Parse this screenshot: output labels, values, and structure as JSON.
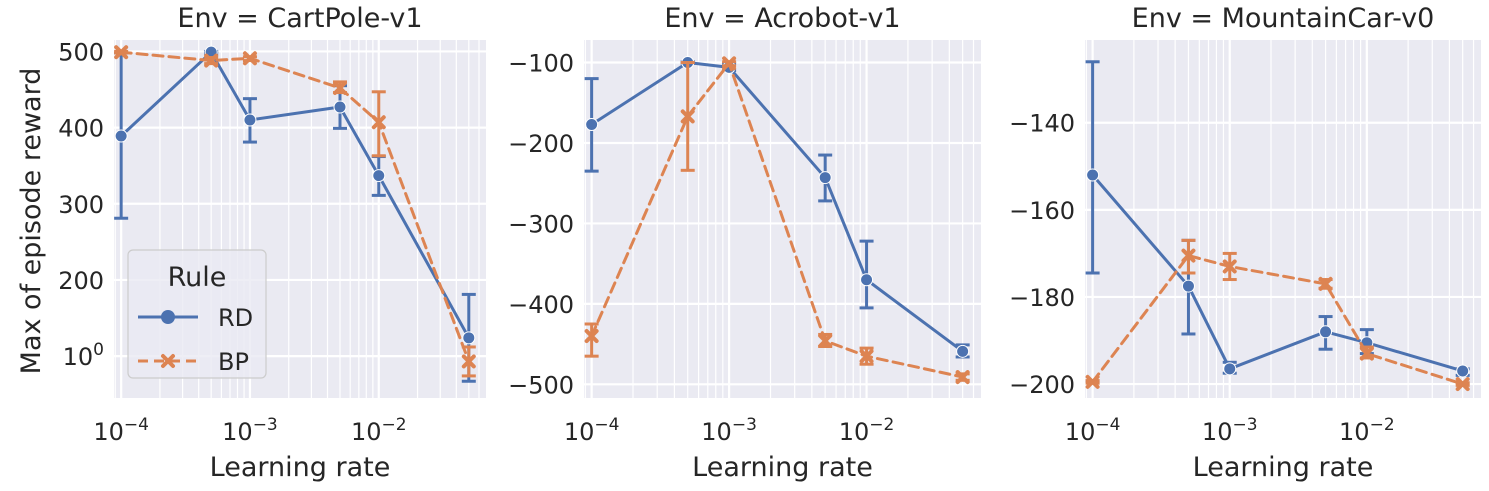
{
  "figure": {
    "ylabel": "Max of episode reward",
    "xlabel": "Learning rate",
    "legend": {
      "title": "Rule",
      "placement": "lower-left of first panel",
      "entries": [
        "RD",
        "BP"
      ]
    }
  },
  "colors": {
    "RD": "#4c72b0",
    "BP": "#dd8452",
    "panel_bg": "#eaeaf2",
    "grid": "#ffffff"
  },
  "chart_data": [
    {
      "type": "line",
      "title": "Env = CartPole-v1",
      "xlabel": "Learning rate",
      "ylabel": "Max of episode reward",
      "xscale": "log",
      "xlim": [
        8.8e-05,
        0.068
      ],
      "ylim": [
        45,
        515
      ],
      "yticks": [
        100,
        200,
        300,
        400,
        500
      ],
      "ytick_labels": [
        "100",
        "200",
        "300",
        "400",
        "500"
      ],
      "xticks": [
        0.0001,
        0.001,
        0.01
      ],
      "xtick_labels": [
        "10−4",
        "10−3",
        "10−2"
      ],
      "grid": true,
      "series": [
        {
          "name": "RD",
          "marker": "circle",
          "dash": false,
          "x": [
            0.0001,
            0.0005,
            0.001,
            0.005,
            0.01,
            0.05
          ],
          "y": [
            389,
            499,
            410,
            427,
            337,
            124
          ],
          "err_low": [
            281,
            497,
            381,
            399,
            311,
            67
          ],
          "err_high": [
            498,
            500,
            438,
            455,
            362,
            181
          ]
        },
        {
          "name": "BP",
          "marker": "x",
          "dash": true,
          "x": [
            0.0001,
            0.0005,
            0.001,
            0.005,
            0.01,
            0.05
          ],
          "y": [
            499,
            488,
            491,
            452,
            407,
            93
          ],
          "err_low": [
            498,
            484,
            488,
            446,
            363,
            74
          ],
          "err_high": [
            500,
            492,
            493,
            460,
            447,
            112
          ]
        }
      ]
    },
    {
      "type": "line",
      "title": "Env = Acrobot-v1",
      "xlabel": "Learning rate",
      "ylabel": "",
      "xscale": "log",
      "xlim": [
        8.8e-05,
        0.068
      ],
      "ylim": [
        -517,
        -72
      ],
      "yticks": [
        -500,
        -400,
        -300,
        -200,
        -100
      ],
      "ytick_labels": [
        "−500",
        "−400",
        "−300",
        "−200",
        "−100"
      ],
      "xticks": [
        0.0001,
        0.001,
        0.01
      ],
      "xtick_labels": [
        "10−4",
        "10−3",
        "10−2"
      ],
      "grid": true,
      "series": [
        {
          "name": "RD",
          "marker": "circle",
          "dash": false,
          "x": [
            0.0001,
            0.0005,
            0.001,
            0.005,
            0.01,
            0.05
          ],
          "y": [
            -177,
            -100,
            -106,
            -243,
            -370,
            -459
          ],
          "err_low": [
            -235,
            -101,
            -110,
            -272,
            -405,
            -466
          ],
          "err_high": [
            -120,
            -99,
            -101,
            -215,
            -322,
            -451
          ]
        },
        {
          "name": "BP",
          "marker": "x",
          "dash": true,
          "x": [
            0.0001,
            0.0005,
            0.001,
            0.005,
            0.01,
            0.05
          ],
          "y": [
            -440,
            -167,
            -101,
            -446,
            -465,
            -491
          ],
          "err_low": [
            -465,
            -234,
            -104,
            -453,
            -475,
            -495
          ],
          "err_high": [
            -425,
            -100,
            -99,
            -438,
            -455,
            -487
          ]
        }
      ]
    },
    {
      "type": "line",
      "title": "Env = MountainCar-v0",
      "xlabel": "Learning rate",
      "ylabel": "",
      "xscale": "log",
      "xlim": [
        8.8e-05,
        0.068
      ],
      "ylim": [
        -203.2,
        -121
      ],
      "yticks": [
        -200,
        -180,
        -160,
        -140
      ],
      "ytick_labels": [
        "−200",
        "−180",
        "−160",
        "−140"
      ],
      "xticks": [
        0.0001,
        0.001,
        0.01
      ],
      "xtick_labels": [
        "10−4",
        "10−3",
        "10−2"
      ],
      "grid": true,
      "series": [
        {
          "name": "RD",
          "marker": "circle",
          "dash": false,
          "x": [
            0.0001,
            0.0005,
            0.001,
            0.005,
            0.01,
            0.05
          ],
          "y": [
            -152,
            -177.5,
            -196.5,
            -188,
            -190.5,
            -197
          ],
          "err_low": [
            -174.5,
            -188.5,
            -197.5,
            -192,
            -193,
            -198
          ],
          "err_high": [
            -126,
            -167,
            -195,
            -184.5,
            -187.5,
            -196.5
          ]
        },
        {
          "name": "BP",
          "marker": "x",
          "dash": true,
          "x": [
            0.0001,
            0.0005,
            0.001,
            0.005,
            0.01,
            0.05
          ],
          "y": [
            -199.5,
            -170.5,
            -173,
            -177,
            -193,
            -200
          ],
          "err_low": [
            -199.8,
            -174.5,
            -176,
            -178,
            -194,
            -200.3
          ],
          "err_high": [
            -199.2,
            -167,
            -170,
            -176,
            -191.5,
            -199.7
          ]
        }
      ]
    }
  ]
}
